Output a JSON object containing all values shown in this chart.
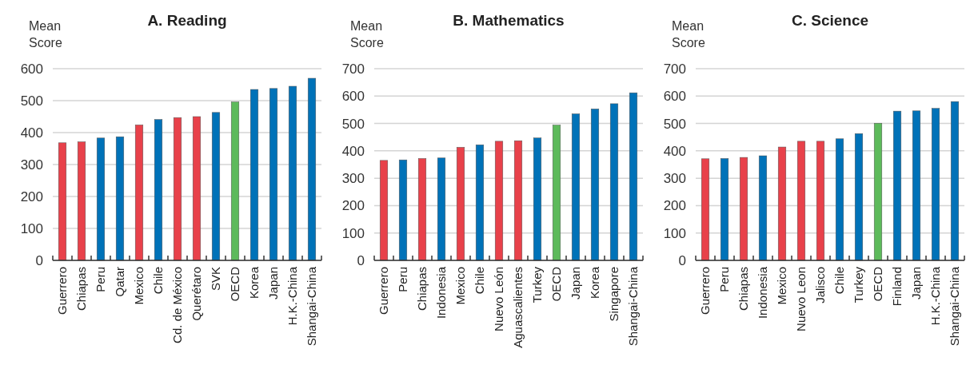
{
  "chart_data": [
    {
      "type": "bar",
      "title": "A. Reading",
      "ylabel": "Mean Score",
      "categories": [
        "Guerrero",
        "Chiapas",
        "Peru",
        "Qatar",
        "Mexico",
        "Chile",
        "Cd. de México",
        "Querétaro",
        "SVK",
        "OECD",
        "Korea",
        "Japan",
        "H.K.-China",
        "Shangai-China"
      ],
      "values": [
        368,
        371,
        383,
        387,
        424,
        441,
        447,
        450,
        463,
        496,
        535,
        538,
        545,
        570
      ],
      "colors": [
        "#e8414a",
        "#e8414a",
        "#0072b8",
        "#0072b8",
        "#e8414a",
        "#0072b8",
        "#e8414a",
        "#e8414a",
        "#0072b8",
        "#5dba5b",
        "#0072b8",
        "#0072b8",
        "#0072b8",
        "#0072b8"
      ],
      "ylim": [
        0,
        600
      ],
      "yticks": [
        0,
        100,
        200,
        300,
        400,
        500,
        600
      ],
      "grid": "y"
    },
    {
      "type": "bar",
      "title": "B. Mathematics",
      "ylabel": "Mean Score",
      "categories": [
        "Guerrero",
        "Peru",
        "Chiapas",
        "Indonesia",
        "Mexico",
        "Chile",
        "Nuevo León",
        "Aguascalientes",
        "Turkey",
        "OECD",
        "Japan",
        "Korea",
        "Singapore",
        "Shangai-China"
      ],
      "values": [
        365,
        367,
        372,
        374,
        413,
        422,
        435,
        437,
        447,
        494,
        535,
        553,
        572,
        612
      ],
      "colors": [
        "#e8414a",
        "#0072b8",
        "#e8414a",
        "#0072b8",
        "#e8414a",
        "#0072b8",
        "#e8414a",
        "#e8414a",
        "#0072b8",
        "#5dba5b",
        "#0072b8",
        "#0072b8",
        "#0072b8",
        "#0072b8"
      ],
      "ylim": [
        0,
        700
      ],
      "yticks": [
        0,
        100,
        200,
        300,
        400,
        500,
        600,
        700
      ],
      "grid": "y"
    },
    {
      "type": "bar",
      "title": "C. Science",
      "ylabel": "Mean Score",
      "categories": [
        "Guerrero",
        "Peru",
        "Chiapas",
        "Indonesia",
        "Mexico",
        "Nuevo Leon",
        "Jalisco",
        "Chile",
        "Turkey",
        "OECD",
        "Finland",
        "Japan",
        "H.K.-China",
        "Shangai-China"
      ],
      "values": [
        371,
        372,
        376,
        382,
        414,
        435,
        435,
        444,
        463,
        501,
        545,
        546,
        555,
        580
      ],
      "colors": [
        "#e8414a",
        "#0072b8",
        "#e8414a",
        "#0072b8",
        "#e8414a",
        "#e8414a",
        "#e8414a",
        "#0072b8",
        "#0072b8",
        "#5dba5b",
        "#0072b8",
        "#0072b8",
        "#0072b8",
        "#0072b8"
      ],
      "ylim": [
        0,
        700
      ],
      "yticks": [
        0,
        100,
        200,
        300,
        400,
        500,
        600,
        700
      ],
      "grid": "y"
    }
  ]
}
